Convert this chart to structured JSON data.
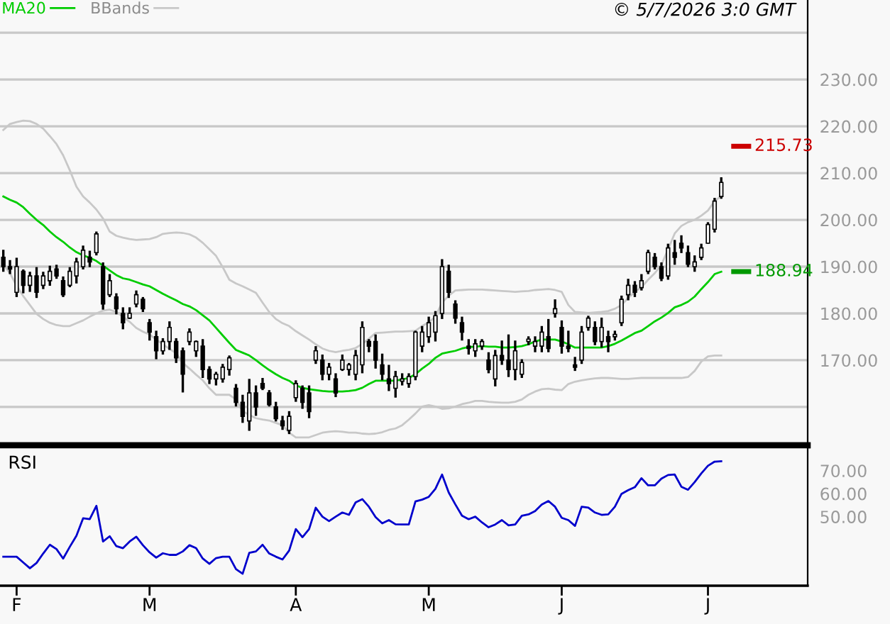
{
  "chart_data": [
    {
      "type": "candlestick",
      "color": "#000000",
      "tick_labels": "y",
      "grid": "y",
      "legend": "top left",
      "annotations": [
        "© 5/7/2026 3:0 GMT"
      ],
      "categories": [
        null,
        null,
        null,
        null,
        null,
        null,
        null,
        null,
        null,
        null,
        null,
        null,
        null,
        null,
        null,
        null,
        null,
        null,
        null,
        null,
        null,
        null,
        null,
        null,
        null,
        null,
        null,
        null,
        null,
        null,
        null,
        null,
        null,
        null,
        null,
        null,
        null,
        null,
        null,
        null,
        null,
        null,
        null,
        null,
        null,
        null,
        null,
        null,
        null,
        null,
        null,
        null,
        null,
        null,
        null,
        null,
        null,
        null,
        null,
        null,
        null,
        null,
        null,
        null,
        null,
        null,
        null,
        null,
        null,
        null,
        null,
        null,
        null,
        null,
        null,
        null,
        null,
        null,
        null,
        null,
        null,
        null,
        null,
        null,
        null,
        null,
        null,
        null,
        null,
        null,
        null,
        null,
        null,
        null,
        null,
        null,
        null,
        null,
        null,
        null,
        null,
        null,
        null,
        null,
        null,
        null,
        null,
        null,
        null
      ],
      "ylim": [
        151.8,
        247
      ],
      "yticks": [
        {
          "value": 160,
          "label": null
        },
        {
          "value": 170,
          "label": "170.00"
        },
        {
          "value": 180,
          "label": "180.00"
        },
        {
          "value": 190,
          "label": "190.00"
        },
        {
          "value": 200,
          "label": "200.00"
        },
        {
          "value": 210,
          "label": "210.00"
        },
        {
          "value": 220,
          "label": "220.00"
        },
        {
          "value": 230,
          "label": "230.00"
        },
        {
          "value": 240,
          "label": null
        }
      ],
      "ref_lines": [
        {
          "axis": "y",
          "value": 215.73,
          "label": "215.73",
          "color": "#cc0000"
        },
        {
          "axis": "y",
          "value": 188.94,
          "label": "188.94",
          "color": "#009900"
        }
      ],
      "ohlc": [
        [
          192,
          193.6,
          188.9,
          190
        ],
        [
          190,
          191.4,
          188.4,
          189.5
        ],
        [
          184.5,
          191.9,
          183.5,
          190
        ],
        [
          189,
          189.4,
          184.3,
          186
        ],
        [
          186,
          188.9,
          184.6,
          188
        ],
        [
          188,
          189.9,
          183.3,
          184.5
        ],
        [
          186,
          188.9,
          185.2,
          188
        ],
        [
          187,
          190.2,
          185.9,
          189
        ],
        [
          189.5,
          190.4,
          187.4,
          188
        ],
        [
          187,
          187.9,
          183.5,
          184
        ],
        [
          186,
          189.9,
          185.6,
          189
        ],
        [
          188,
          191.9,
          186.4,
          191
        ],
        [
          190,
          194.5,
          189.4,
          193.5
        ],
        [
          192,
          193.4,
          189.9,
          191
        ],
        [
          193,
          197.5,
          192.4,
          197
        ],
        [
          190,
          190.9,
          180.8,
          182
        ],
        [
          184,
          188.4,
          183.5,
          187
        ],
        [
          183.5,
          184.3,
          179.8,
          181
        ],
        [
          180,
          181.3,
          176.6,
          178
        ],
        [
          179,
          181.3,
          178.8,
          180
        ],
        [
          182,
          184.9,
          181.3,
          184
        ],
        [
          183,
          183.5,
          180.3,
          181
        ],
        [
          178,
          178.8,
          174.2,
          176
        ],
        [
          175,
          176.3,
          170.2,
          172
        ],
        [
          172,
          174.7,
          171.2,
          174
        ],
        [
          174,
          178.3,
          172.2,
          177
        ],
        [
          174,
          174.7,
          169.4,
          170.5
        ],
        [
          172,
          172.7,
          163.1,
          167
        ],
        [
          174,
          176.8,
          173.2,
          176
        ],
        [
          172,
          174.2,
          170.7,
          174
        ],
        [
          173,
          174.5,
          166.2,
          168
        ],
        [
          168,
          168.7,
          164.9,
          166
        ],
        [
          166,
          167.5,
          164.6,
          167
        ],
        [
          166,
          169.2,
          165.2,
          168.5
        ],
        [
          168,
          171,
          166.7,
          170.5
        ],
        [
          164,
          164.9,
          160.1,
          161
        ],
        [
          161,
          162.6,
          156.6,
          158
        ],
        [
          157,
          166,
          154.9,
          163
        ],
        [
          163,
          164.6,
          158.1,
          160
        ],
        [
          165,
          166.2,
          163.6,
          164
        ],
        [
          163,
          163.6,
          160.1,
          160.5
        ],
        [
          160,
          161.1,
          156.9,
          157.5
        ],
        [
          157,
          158.1,
          155.1,
          156
        ],
        [
          155,
          159.1,
          154.2,
          158
        ],
        [
          162,
          165.7,
          161.1,
          165
        ],
        [
          164,
          164.6,
          159.6,
          161
        ],
        [
          163,
          164.6,
          157.6,
          159
        ],
        [
          170,
          173,
          169.2,
          172
        ],
        [
          170,
          171.2,
          165.7,
          167
        ],
        [
          167,
          169.4,
          165.7,
          168.5
        ],
        [
          166,
          167.2,
          162.1,
          163
        ],
        [
          168,
          171.2,
          167.7,
          170
        ],
        [
          168,
          169.4,
          166.7,
          169
        ],
        [
          167,
          172.2,
          165.7,
          171
        ],
        [
          169,
          178.3,
          167.2,
          177
        ],
        [
          174,
          174.5,
          171.7,
          173
        ],
        [
          174,
          175.5,
          168.2,
          170
        ],
        [
          169,
          171.4,
          165.7,
          167
        ],
        [
          166,
          169,
          163.4,
          165
        ],
        [
          164,
          167.7,
          162,
          166.5
        ],
        [
          165.5,
          167.2,
          164.6,
          166
        ],
        [
          165,
          167.2,
          164.1,
          166.5
        ],
        [
          166.5,
          176.3,
          165.7,
          176
        ],
        [
          173,
          177.3,
          171.7,
          176
        ],
        [
          175,
          179.3,
          173.7,
          178
        ],
        [
          176,
          180.5,
          174,
          179.5
        ],
        [
          180,
          191.6,
          178.8,
          190
        ],
        [
          189,
          190.4,
          183.3,
          184.5
        ],
        [
          182,
          182.8,
          177.8,
          179
        ],
        [
          178,
          179.3,
          174.2,
          176
        ],
        [
          173,
          174.5,
          171.2,
          172.5
        ],
        [
          172,
          174.5,
          170.7,
          173.5
        ],
        [
          173,
          174.5,
          172.2,
          174
        ],
        [
          170,
          171.7,
          167.2,
          168
        ],
        [
          166,
          172.2,
          164.4,
          171
        ],
        [
          171,
          174.2,
          169,
          170
        ],
        [
          170,
          175.5,
          166.4,
          168
        ],
        [
          168,
          174.2,
          165.7,
          172
        ],
        [
          167,
          170.2,
          166.2,
          169.5
        ],
        [
          174,
          175.1,
          173.2,
          174.5
        ],
        [
          173,
          175.1,
          171.7,
          174
        ],
        [
          173,
          177.3,
          171.7,
          176
        ],
        [
          175,
          178.8,
          171.7,
          172.5
        ],
        [
          180,
          183,
          179.1,
          181
        ],
        [
          177,
          178.5,
          171.4,
          173
        ],
        [
          173,
          176.3,
          171.7,
          172.5
        ],
        [
          169,
          170.7,
          167.7,
          168.5
        ],
        [
          170,
          177.3,
          169.2,
          176
        ],
        [
          177,
          179.5,
          176.3,
          179
        ],
        [
          177,
          178.3,
          173.2,
          174
        ],
        [
          174,
          179.1,
          172.7,
          177
        ],
        [
          175,
          176.3,
          171.7,
          174
        ],
        [
          175,
          176.3,
          174.2,
          175.5
        ],
        [
          178,
          183.8,
          177.3,
          183
        ],
        [
          184,
          187.4,
          182.8,
          186
        ],
        [
          186,
          186.9,
          183.5,
          184.5
        ],
        [
          185.5,
          188.4,
          184.9,
          187
        ],
        [
          189,
          193.6,
          188.4,
          193
        ],
        [
          192,
          192.9,
          189.4,
          190
        ],
        [
          190,
          190.9,
          186.9,
          187.5
        ],
        [
          188,
          194.9,
          187.2,
          194
        ],
        [
          193,
          195.7,
          190.4,
          192
        ],
        [
          195,
          196.7,
          192.9,
          194
        ],
        [
          193,
          194.5,
          189.9,
          190.5
        ],
        [
          190,
          192.4,
          188.9,
          191
        ],
        [
          192,
          194.9,
          191.4,
          194
        ],
        [
          195,
          199.5,
          194.9,
          199
        ],
        [
          198,
          204.7,
          197.3,
          204
        ],
        [
          205,
          209.1,
          204.5,
          208
        ]
      ],
      "series": [
        {
          "name": "MA20",
          "type": "line",
          "color": "#00cc00",
          "values": [
            205,
            204.3,
            203.7,
            202.7,
            201.3,
            200,
            198.9,
            197.5,
            196.3,
            195.3,
            194.1,
            193.1,
            192.4,
            191.9,
            191.2,
            190.2,
            189.2,
            188.2,
            187.5,
            187.2,
            186.7,
            186.2,
            185.8,
            185,
            184.2,
            183.5,
            182.8,
            182,
            181.5,
            180.7,
            179.6,
            178.5,
            176.9,
            175.3,
            173.7,
            172.2,
            171.6,
            171,
            170,
            168.9,
            167.9,
            167,
            166.2,
            165.6,
            164.6,
            164.1,
            163.8,
            163.6,
            163.4,
            163.3,
            163.3,
            163.3,
            163.4,
            163.6,
            164.1,
            164.9,
            165.6,
            165.6,
            165.6,
            165.6,
            165.9,
            166.2,
            167,
            168.2,
            169.2,
            170.5,
            171.4,
            171.7,
            172,
            172.5,
            172.8,
            172.9,
            173,
            172.9,
            172.9,
            172.7,
            172.7,
            172.8,
            173,
            173.4,
            174,
            174.4,
            174.4,
            174.4,
            174,
            173.4,
            172.7,
            172.7,
            172.7,
            172.7,
            172.7,
            173,
            173.5,
            174.2,
            175,
            175.8,
            176.3,
            177.3,
            178.3,
            179.1,
            180.1,
            181.3,
            181.8,
            182.5,
            183.6,
            185.2,
            186.7,
            188.4,
            188.9
          ]
        },
        {
          "name": "BBands",
          "type": "line",
          "color": "#c8c8c8",
          "values": [
            219.2,
            220.5,
            220.9,
            221.2,
            221.1,
            220.5,
            219.5,
            217.9,
            216.2,
            213.8,
            210.6,
            207.1,
            205,
            203.7,
            202.2,
            200.3,
            197.5,
            196.6,
            196.2,
            195.9,
            195.7,
            195.8,
            195.9,
            196.3,
            197,
            197.2,
            197.3,
            197.2,
            196.9,
            196.2,
            195.1,
            193.7,
            192.3,
            189.9,
            187.2,
            186.4,
            185.8,
            185.1,
            184.4,
            182.3,
            180.3,
            178.8,
            177.9,
            177.3,
            176.2,
            175.3,
            174.4,
            173.4,
            172.5,
            172,
            171.7,
            172,
            172.2,
            172.6,
            173.5,
            174.6,
            175.8,
            175.9,
            176,
            176.1,
            176.1,
            176.2,
            176.3,
            177.3,
            178.1,
            179.3,
            182.3,
            183.8,
            184.9,
            185,
            185.1,
            185.1,
            185.1,
            185,
            184.9,
            184.8,
            184.7,
            184.6,
            184.7,
            184.8,
            185,
            185.1,
            185.2,
            185,
            184.6,
            181.8,
            180.3,
            180.2,
            180.1,
            180.2,
            180.3,
            180.5,
            181,
            181.8,
            183.3,
            184.6,
            185.6,
            187.2,
            188.6,
            190.4,
            193.7,
            197.1,
            198.7,
            199.5,
            200,
            200.9,
            202,
            204,
            205.1
          ]
        },
        {
          "type": "line",
          "color": "#c8c8c8",
          "values": [
            190.4,
            188.6,
            185.9,
            183.7,
            181.8,
            179.9,
            178.8,
            178,
            177.5,
            177.3,
            177.3,
            177.9,
            178.5,
            179.3,
            180,
            180.6,
            180.8,
            180.3,
            179.3,
            178.2,
            176.9,
            176.1,
            175.5,
            174.4,
            173.4,
            172.4,
            171.5,
            169.4,
            168.2,
            166.9,
            165.7,
            164,
            162.6,
            162.6,
            162.6,
            161.6,
            159.1,
            158.3,
            157.6,
            157.3,
            157.1,
            156.6,
            156.1,
            154.5,
            153.5,
            153.5,
            153.5,
            154,
            154.5,
            154.7,
            154.8,
            154.7,
            154.5,
            154.5,
            154.3,
            154.2,
            154.3,
            154.6,
            155.1,
            155.4,
            156.1,
            157.3,
            158.6,
            160.1,
            160.4,
            160.1,
            159.6,
            159.7,
            160.1,
            160.6,
            160.9,
            161.3,
            161.3,
            161.1,
            161,
            160.9,
            160.9,
            161.1,
            161.6,
            162.6,
            163.3,
            163.8,
            163.9,
            163.7,
            163.6,
            164.9,
            165.4,
            165.7,
            165.9,
            166.1,
            166.2,
            166.2,
            166.1,
            166,
            166,
            166.1,
            166.2,
            166.2,
            166.2,
            166.2,
            166.2,
            166.2,
            166.2,
            166.4,
            167.7,
            169.7,
            170.8,
            171,
            171
          ]
        }
      ]
    },
    {
      "type": "line",
      "title": "RSI",
      "categories": [
        null,
        null,
        "F",
        null,
        null,
        null,
        null,
        null,
        null,
        null,
        null,
        null,
        null,
        null,
        null,
        null,
        null,
        null,
        null,
        null,
        null,
        null,
        "M",
        null,
        null,
        null,
        null,
        null,
        null,
        null,
        null,
        null,
        null,
        null,
        null,
        null,
        null,
        null,
        null,
        null,
        null,
        null,
        null,
        null,
        "A",
        null,
        null,
        null,
        null,
        null,
        null,
        null,
        null,
        null,
        null,
        null,
        null,
        null,
        null,
        null,
        null,
        null,
        null,
        null,
        "M",
        null,
        null,
        null,
        null,
        null,
        null,
        null,
        null,
        null,
        null,
        null,
        null,
        null,
        null,
        null,
        null,
        null,
        null,
        null,
        "J",
        null,
        null,
        null,
        null,
        null,
        null,
        null,
        null,
        null,
        null,
        null,
        null,
        null,
        null,
        null,
        null,
        null,
        null,
        null,
        null,
        null,
        "J",
        null,
        null
      ],
      "ylim": [
        20,
        81
      ],
      "yticks": [
        {
          "value": 50,
          "label": "50.00"
        },
        {
          "value": 60,
          "label": "60.00"
        },
        {
          "value": 70,
          "label": "70.00"
        }
      ],
      "series": [
        {
          "color": "#0000cc",
          "values": [
            32.6,
            32.6,
            32.6,
            30.1,
            27.6,
            29.9,
            34,
            37.8,
            35.9,
            31.8,
            36.9,
            41.7,
            49.3,
            48.9,
            54.7,
            39.2,
            41.5,
            37.2,
            36.3,
            39.2,
            41.3,
            37.6,
            34.5,
            32.2,
            34.1,
            33.4,
            33.4,
            34.9,
            37.6,
            36.3,
            31.8,
            29.5,
            32,
            32.6,
            32.6,
            27.2,
            25.2,
            34.3,
            34.9,
            37.8,
            34,
            32.6,
            31.4,
            35.3,
            44.6,
            41.1,
            44.6,
            53.9,
            50,
            48.1,
            50,
            51.8,
            50.8,
            56.2,
            57.6,
            54.3,
            49.8,
            47.1,
            48.5,
            46.7,
            46.6,
            46.6,
            56.6,
            57.4,
            58.6,
            62.1,
            68.3,
            60.5,
            55.3,
            50.4,
            48.9,
            50,
            47.5,
            45.4,
            46.6,
            48.5,
            46.2,
            46.6,
            50.4,
            51,
            52.4,
            55.3,
            56.8,
            54.3,
            49.5,
            48.5,
            46,
            54.3,
            53.9,
            51.8,
            50.8,
            51,
            54.3,
            59.9,
            61.5,
            62.8,
            66.7,
            63.6,
            63.6,
            66.5,
            68.1,
            68.3,
            63,
            61.7,
            65,
            68.8,
            72.1,
            73.9,
            74.1
          ]
        }
      ]
    }
  ]
}
